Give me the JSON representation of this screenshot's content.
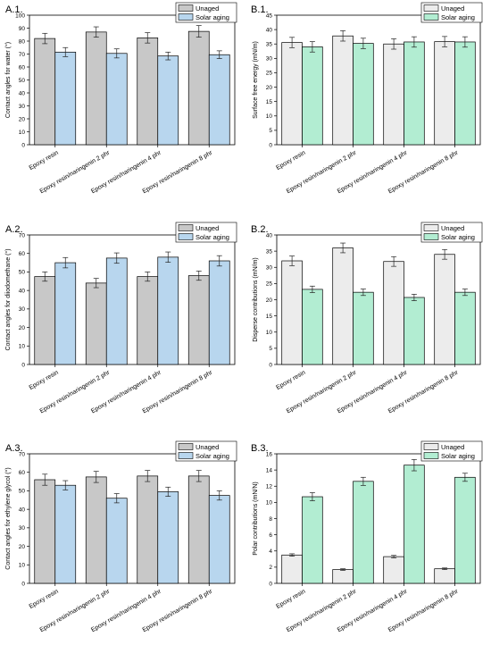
{
  "chart_data": [
    {
      "id": "A1",
      "type": "bar",
      "panel_label": "A.1.",
      "ylabel": "Contact angles for water (°)",
      "ylim": [
        0,
        100
      ],
      "yticks": [
        0,
        10,
        20,
        30,
        40,
        50,
        60,
        70,
        80,
        90,
        100
      ],
      "categories": [
        "Epoxy resin",
        "Epoxy resin/naringenin 2 phr",
        "Epoxy resin/naringenin 4 phr",
        "Epoxy resin/naringenin 8 phr"
      ],
      "series": [
        {
          "name": "Unaged",
          "values": [
            82,
            87,
            82.5,
            87.5
          ],
          "errors": [
            4,
            4,
            4,
            4.5
          ]
        },
        {
          "name": "Solar aging",
          "values": [
            71.5,
            70.5,
            68.5,
            69.5
          ],
          "errors": [
            3.5,
            3.5,
            3,
            3
          ]
        }
      ],
      "colors": [
        "#c8c8c8",
        "#b8d6ee"
      ],
      "legend": "top-right"
    },
    {
      "id": "B1",
      "type": "bar",
      "panel_label": "B.1.",
      "ylabel": "Surface free energy (mN/m)",
      "ylim": [
        0,
        45
      ],
      "yticks": [
        0,
        5,
        10,
        15,
        20,
        25,
        30,
        35,
        40,
        45
      ],
      "categories": [
        "Epoxy resin",
        "Epoxy resin/naringenin 2 phr",
        "Epoxy resin/naringenin 4 phr",
        "Epoxy resin/naringenin 8 phr"
      ],
      "series": [
        {
          "name": "Unaged",
          "values": [
            35.5,
            37.8,
            35,
            35.8
          ],
          "errors": [
            1.8,
            1.8,
            1.8,
            1.8
          ]
        },
        {
          "name": "Solar aging",
          "values": [
            34,
            35.2,
            35.7,
            35.7
          ],
          "errors": [
            1.8,
            1.8,
            1.8,
            1.8
          ]
        }
      ],
      "colors": [
        "#ececec",
        "#b2edd2"
      ],
      "legend": "top-right"
    },
    {
      "id": "A2",
      "type": "bar",
      "panel_label": "A.2.",
      "ylabel": "Contact angles for diiodomethane (°)",
      "ylim": [
        0,
        70
      ],
      "yticks": [
        0,
        10,
        20,
        30,
        40,
        50,
        60,
        70
      ],
      "categories": [
        "Epoxy resin",
        "Epoxy resin/naringenin 2 phr",
        "Epoxy resin/naringenin 4 phr",
        "Epoxy resin/naringenin 8 phr"
      ],
      "series": [
        {
          "name": "Unaged",
          "values": [
            47.5,
            44,
            47.5,
            48
          ],
          "errors": [
            2.5,
            2.5,
            2.5,
            2.5
          ]
        },
        {
          "name": "Solar aging",
          "values": [
            55,
            57.5,
            58,
            56
          ],
          "errors": [
            2.8,
            2.8,
            2.8,
            2.8
          ]
        }
      ],
      "colors": [
        "#c8c8c8",
        "#b8d6ee"
      ],
      "legend": "top-right"
    },
    {
      "id": "B2",
      "type": "bar",
      "panel_label": "B.2.",
      "ylabel": "Disperse contributions (mN/m)",
      "ylim": [
        0,
        40
      ],
      "yticks": [
        0,
        5,
        10,
        15,
        20,
        25,
        30,
        35,
        40
      ],
      "categories": [
        "Epoxy resin",
        "Epoxy resin/naringenin 2 phr",
        "Epoxy resin/naringenin 4 phr",
        "Epoxy resin/naringenin 8 phr"
      ],
      "series": [
        {
          "name": "Unaged",
          "values": [
            32,
            36,
            31.8,
            34
          ],
          "errors": [
            1.5,
            1.5,
            1.5,
            1.5
          ]
        },
        {
          "name": "Solar aging",
          "values": [
            23.2,
            22.3,
            20.7,
            22.3
          ],
          "errors": [
            1,
            1,
            1,
            1
          ]
        }
      ],
      "colors": [
        "#ececec",
        "#b2edd2"
      ],
      "legend": "top-right"
    },
    {
      "id": "A3",
      "type": "bar",
      "panel_label": "A.3.",
      "ylabel": "Contact angles for ethylene glycol (°)",
      "ylim": [
        0,
        70
      ],
      "yticks": [
        0,
        10,
        20,
        30,
        40,
        50,
        60,
        70
      ],
      "categories": [
        "Epoxy resin",
        "Epoxy resin/naringenin 2 phr",
        "Epoxy resin/naringenin 4 phr",
        "Epoxy resin/naringenin 8 phr"
      ],
      "series": [
        {
          "name": "Unaged",
          "values": [
            56,
            57.5,
            58,
            58
          ],
          "errors": [
            3,
            3,
            3,
            3
          ]
        },
        {
          "name": "Solar aging",
          "values": [
            53,
            46,
            49.5,
            47.5
          ],
          "errors": [
            2.5,
            2.5,
            2.5,
            2.5
          ]
        }
      ],
      "colors": [
        "#c8c8c8",
        "#b8d6ee"
      ],
      "legend": "top-right"
    },
    {
      "id": "B3",
      "type": "bar",
      "panel_label": "B.3.",
      "ylabel": "Polar contributions (mN/N)",
      "ylim": [
        0,
        16
      ],
      "yticks": [
        0,
        2,
        4,
        6,
        8,
        10,
        12,
        14,
        16
      ],
      "categories": [
        "Epoxy resin",
        "Epoxy resin/naringenin 2 phr",
        "Epoxy resin/naringenin 4 phr",
        "Epoxy resin/naringenin 8 phr"
      ],
      "series": [
        {
          "name": "Unaged",
          "values": [
            3.5,
            1.7,
            3.3,
            1.8
          ],
          "errors": [
            0.15,
            0.1,
            0.15,
            0.1
          ]
        },
        {
          "name": "Solar aging",
          "values": [
            10.7,
            12.6,
            14.6,
            13.1
          ],
          "errors": [
            0.5,
            0.5,
            0.7,
            0.5
          ]
        }
      ],
      "colors": [
        "#ececec",
        "#b2edd2"
      ],
      "legend": "top-right"
    }
  ]
}
